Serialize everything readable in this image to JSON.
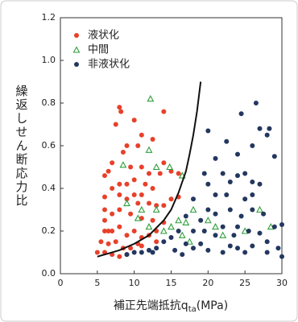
{
  "chart_data": {
    "type": "scatter",
    "y_label": "繰返しせん断応力比",
    "x_label": {
      "main": "補正先端抵抗q",
      "sub": "ta",
      "unit": "(MPa)"
    },
    "xlim": [
      0,
      30
    ],
    "ylim": [
      0,
      1.2
    ],
    "xticks": [
      0,
      5,
      10,
      15,
      20,
      25,
      30
    ],
    "yticks": [
      {
        "value": 0,
        "label": "0.0"
      },
      0.2,
      0.4,
      0.6,
      0.8,
      {
        "value": 1,
        "label": "1.0"
      },
      1.2
    ],
    "legend": "upper left",
    "series": [
      {
        "name": "液状化",
        "color": "#e8402a",
        "marker": "circle",
        "x": [
          8,
          8.2,
          7.5,
          10,
          14,
          12.5,
          11,
          10.5,
          9,
          8.5,
          7,
          6,
          6.5,
          9.5,
          11,
          12,
          13.5,
          15,
          16,
          14,
          7,
          8,
          9,
          10,
          11.5,
          12.5,
          8,
          9,
          10.5,
          11,
          12,
          13,
          14,
          15,
          16,
          6,
          6,
          7,
          8,
          9.5,
          11,
          12.5,
          14,
          6,
          6,
          7,
          8,
          9,
          10,
          11,
          12,
          13,
          5.5,
          6.5,
          7.5,
          8.5,
          9.5,
          10.5,
          5,
          6,
          7,
          8,
          9,
          11,
          13,
          6.5,
          10
        ],
        "y": [
          0.78,
          0.76,
          0.7,
          0.72,
          0.76,
          0.63,
          0.65,
          0.6,
          0.6,
          0.57,
          0.52,
          0.46,
          0.48,
          0.5,
          0.5,
          0.47,
          0.47,
          0.48,
          0.47,
          0.52,
          0.4,
          0.42,
          0.42,
          0.44,
          0.42,
          0.4,
          0.37,
          0.35,
          0.33,
          0.37,
          0.33,
          0.32,
          0.32,
          0.35,
          0.36,
          0.36,
          0.3,
          0.28,
          0.3,
          0.28,
          0.26,
          0.25,
          0.24,
          0.25,
          0.2,
          0.2,
          0.22,
          0.18,
          0.2,
          0.17,
          0.18,
          0.2,
          0.15,
          0.14,
          0.15,
          0.12,
          0.12,
          0.14,
          0.1,
          0.1,
          0.09,
          0.08,
          0.09,
          0.13,
          0.15,
          0.2,
          0.37
        ]
      },
      {
        "name": "中間",
        "color": "#2e9e3a",
        "marker": "triangle",
        "x": [
          12.2,
          12,
          8.5,
          13,
          14.8,
          16.5,
          11,
          13,
          10.5,
          12,
          15,
          16,
          17,
          18,
          20,
          22,
          25,
          27,
          28.5,
          16.5,
          14,
          9,
          17.5,
          21
        ],
        "y": [
          0.82,
          0.58,
          0.51,
          0.5,
          0.5,
          0.46,
          0.3,
          0.3,
          0.26,
          0.22,
          0.22,
          0.25,
          0.24,
          0.3,
          0.25,
          0.18,
          0.2,
          0.3,
          0.22,
          0.18,
          0.2,
          0.33,
          0.15,
          0.22
        ]
      },
      {
        "name": "非液状化",
        "color": "#23375f",
        "marker": "circle",
        "x": [
          26.5,
          24.5,
          27,
          28,
          20,
          22.5,
          26,
          28.3,
          24,
          21,
          29,
          25,
          22,
          19.5,
          20,
          23,
          24,
          26,
          27,
          21,
          22.5,
          25,
          26,
          18,
          20,
          21,
          23,
          24.5,
          26,
          27.5,
          19,
          22,
          24,
          25.5,
          27,
          29,
          30,
          17,
          18,
          16,
          15,
          14,
          13,
          12,
          11,
          10,
          9,
          15.5,
          17,
          18,
          19,
          20,
          22,
          23,
          24,
          25,
          26,
          28,
          29.5,
          30,
          19.5,
          21,
          23.5,
          28,
          12.5,
          16.5
        ],
        "y": [
          0.8,
          0.75,
          0.68,
          0.65,
          0.67,
          0.62,
          0.6,
          0.68,
          0.56,
          0.54,
          0.55,
          0.47,
          0.47,
          0.47,
          0.42,
          0.43,
          0.46,
          0.43,
          0.42,
          0.37,
          0.37,
          0.35,
          0.37,
          0.35,
          0.3,
          0.28,
          0.3,
          0.27,
          0.3,
          0.28,
          0.25,
          0.22,
          0.22,
          0.2,
          0.19,
          0.22,
          0.23,
          0.27,
          0.2,
          0.2,
          0.17,
          0.15,
          0.12,
          0.11,
          0.1,
          0.1,
          0.09,
          0.11,
          0.14,
          0.12,
          0.14,
          0.11,
          0.1,
          0.13,
          0.12,
          0.1,
          0.13,
          0.1,
          0.12,
          0.08,
          0.2,
          0.18,
          0.18,
          0.15,
          0.1,
          0.09
        ]
      }
    ],
    "curve": {
      "color": "#111111",
      "x": [
        5,
        6,
        8,
        10,
        12,
        14,
        15,
        16,
        17,
        17.5,
        18,
        18.5,
        19
      ],
      "y": [
        0.08,
        0.09,
        0.11,
        0.14,
        0.18,
        0.25,
        0.3,
        0.38,
        0.48,
        0.56,
        0.65,
        0.76,
        0.9
      ]
    }
  }
}
